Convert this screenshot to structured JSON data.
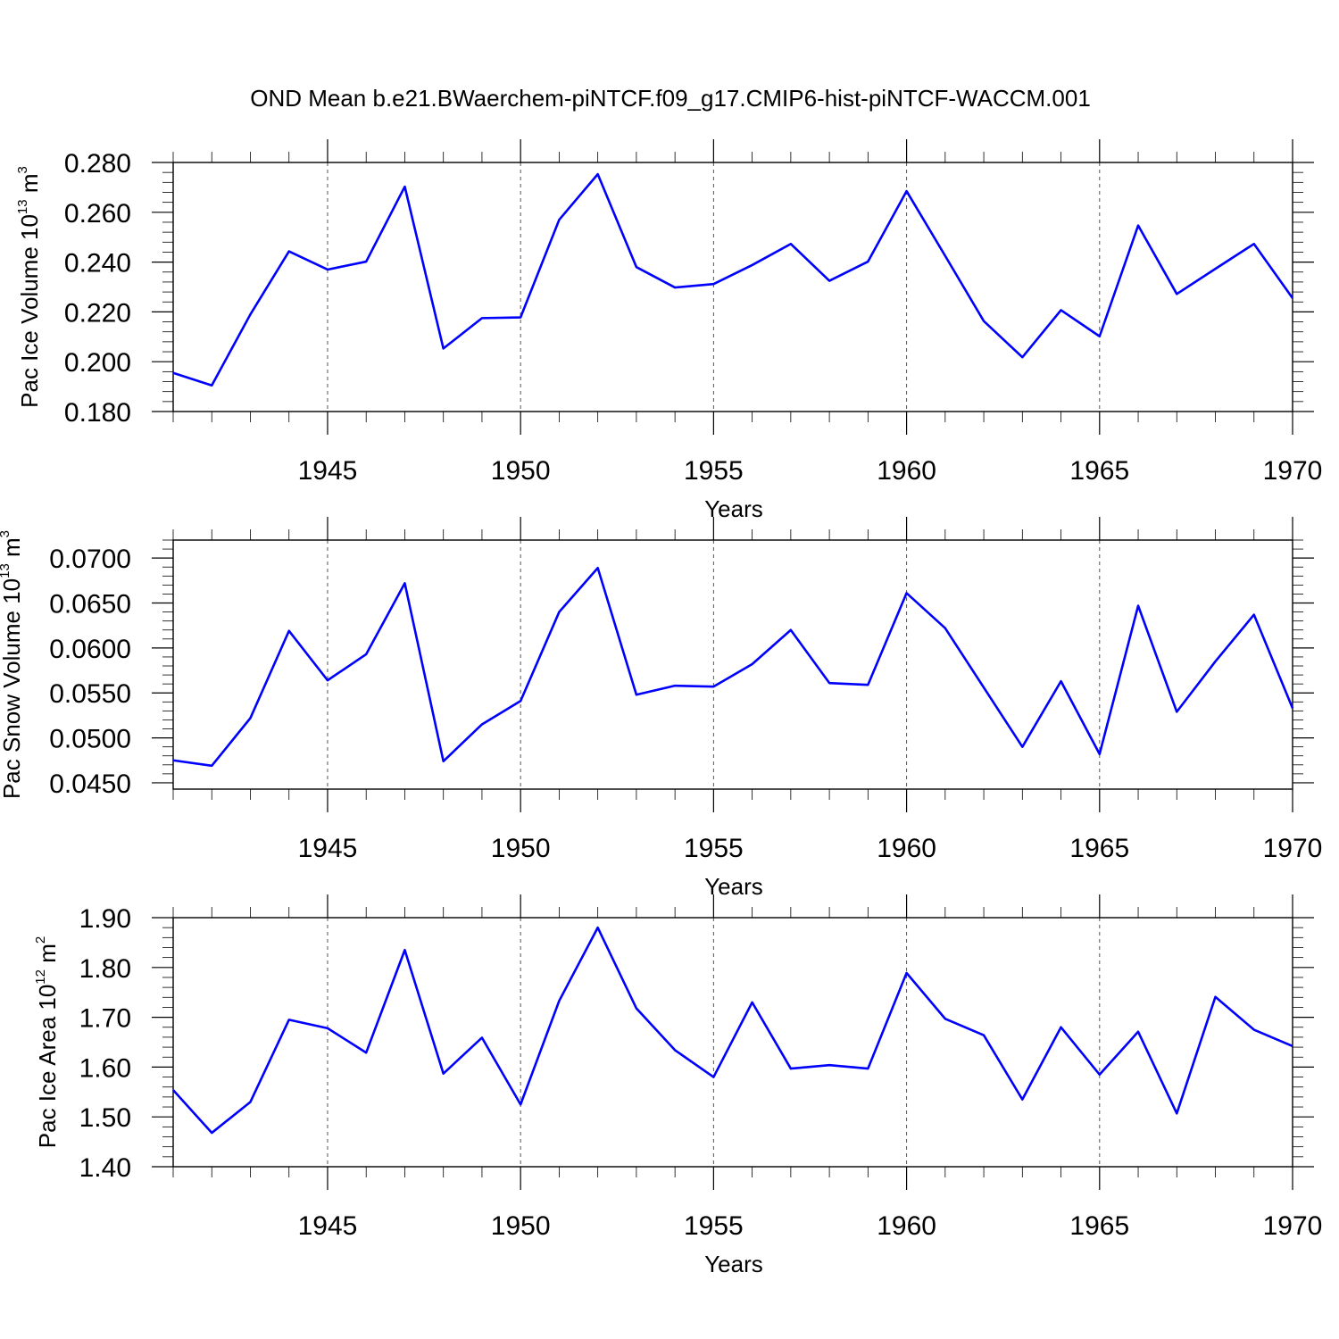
{
  "title": "OND Mean b.e21.BWaerchem-piNTCF.f09_g17.CMIP6-hist-piNTCF-WACCM.001",
  "colors": {
    "line": "#0000ff",
    "grid": "#555555",
    "axis": "#000000"
  },
  "chart_data": [
    {
      "type": "line",
      "xlabel": "Years",
      "ylabel": {
        "text": "Pac Ice Volume 10",
        "exp": "13",
        "unit": " m",
        "unit_exp": "3"
      },
      "xlim": [
        1941,
        1970
      ],
      "ylim": [
        0.18,
        0.28
      ],
      "x_ticks": [
        1945,
        1950,
        1955,
        1960,
        1965,
        1970
      ],
      "y_ticks": [
        0.18,
        0.2,
        0.22,
        0.24,
        0.26,
        0.28
      ],
      "y_tick_labels": [
        "0.180",
        "0.200",
        "0.220",
        "0.240",
        "0.260",
        "0.280"
      ],
      "grid": "x-dashed",
      "x": [
        1941,
        1942,
        1943,
        1944,
        1945,
        1946,
        1947,
        1948,
        1949,
        1950,
        1951,
        1952,
        1953,
        1954,
        1955,
        1956,
        1957,
        1958,
        1959,
        1960,
        1961,
        1962,
        1963,
        1964,
        1965,
        1966,
        1967,
        1968,
        1969,
        1970
      ],
      "series": [
        {
          "values": [
            0.1955,
            0.1905,
            0.219,
            0.2443,
            0.237,
            0.2402,
            0.2703,
            0.2053,
            0.2175,
            0.2178,
            0.257,
            0.2753,
            0.238,
            0.2298,
            0.2312,
            0.2388,
            0.2473,
            0.2325,
            0.2402,
            0.2685,
            0.2425,
            0.2163,
            0.2018,
            0.2207,
            0.2102,
            0.2547,
            0.2272,
            0.2373,
            0.2473,
            0.2255
          ]
        }
      ]
    },
    {
      "type": "line",
      "xlabel": "Years",
      "ylabel": {
        "text": "Pac Snow Volume 10",
        "exp": "13",
        "unit": " m",
        "unit_exp": "3"
      },
      "xlim": [
        1941,
        1970
      ],
      "ylim": [
        0.0443,
        0.072
      ],
      "x_ticks": [
        1945,
        1950,
        1955,
        1960,
        1965,
        1970
      ],
      "y_ticks": [
        0.045,
        0.05,
        0.055,
        0.06,
        0.065,
        0.07
      ],
      "y_tick_labels": [
        "0.0450",
        "0.0500",
        "0.0550",
        "0.0600",
        "0.0650",
        "0.0700"
      ],
      "grid": "x-dashed",
      "x": [
        1941,
        1942,
        1943,
        1944,
        1945,
        1946,
        1947,
        1948,
        1949,
        1950,
        1951,
        1952,
        1953,
        1954,
        1955,
        1956,
        1957,
        1958,
        1959,
        1960,
        1961,
        1962,
        1963,
        1964,
        1965,
        1966,
        1967,
        1968,
        1969,
        1970
      ],
      "series": [
        {
          "values": [
            0.0475,
            0.0469,
            0.0522,
            0.0619,
            0.0564,
            0.0593,
            0.0672,
            0.0474,
            0.0515,
            0.0541,
            0.064,
            0.0689,
            0.0548,
            0.0558,
            0.0557,
            0.0582,
            0.062,
            0.0561,
            0.0559,
            0.0661,
            0.0622,
            0.0556,
            0.049,
            0.0563,
            0.0482,
            0.0647,
            0.0529,
            0.0585,
            0.0637,
            0.0533
          ]
        }
      ]
    },
    {
      "type": "line",
      "xlabel": "Years",
      "ylabel": {
        "text": "Pac Ice Area 10",
        "exp": "12",
        "unit": " m",
        "unit_exp": "2"
      },
      "xlim": [
        1941,
        1970
      ],
      "ylim": [
        1.4,
        1.9
      ],
      "x_ticks": [
        1945,
        1950,
        1955,
        1960,
        1965,
        1970
      ],
      "y_ticks": [
        1.4,
        1.5,
        1.6,
        1.7,
        1.8,
        1.9
      ],
      "y_tick_labels": [
        "1.40",
        "1.50",
        "1.60",
        "1.70",
        "1.80",
        "1.90"
      ],
      "grid": "x-dashed",
      "x": [
        1941,
        1942,
        1943,
        1944,
        1945,
        1946,
        1947,
        1948,
        1949,
        1950,
        1951,
        1952,
        1953,
        1954,
        1955,
        1956,
        1957,
        1958,
        1959,
        1960,
        1961,
        1962,
        1963,
        1964,
        1965,
        1966,
        1967,
        1968,
        1969,
        1970
      ],
      "series": [
        {
          "values": [
            1.554,
            1.468,
            1.53,
            1.695,
            1.678,
            1.629,
            1.835,
            1.587,
            1.659,
            1.525,
            1.733,
            1.88,
            1.718,
            1.634,
            1.58,
            1.73,
            1.597,
            1.604,
            1.597,
            1.789,
            1.697,
            1.664,
            1.535,
            1.68,
            1.585,
            1.671,
            1.507,
            1.741,
            1.675,
            1.642
          ]
        }
      ]
    }
  ]
}
